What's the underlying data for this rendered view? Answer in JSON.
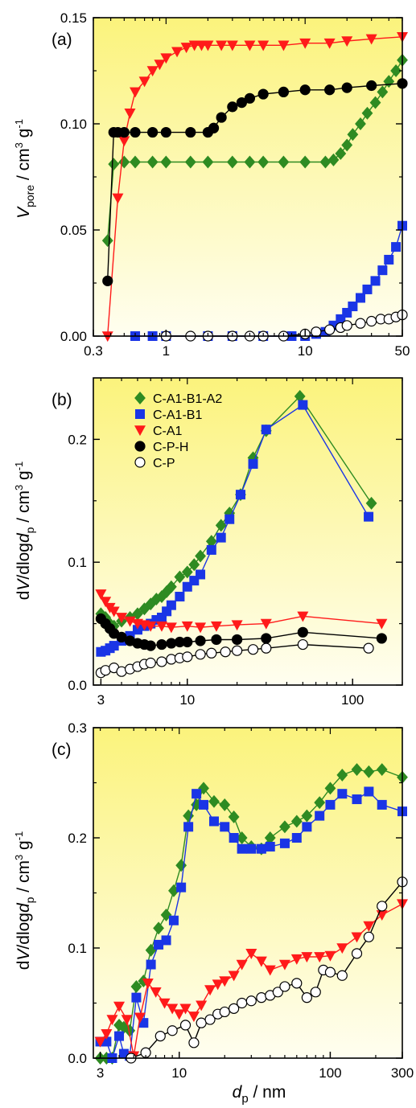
{
  "colors": {
    "green": "#2e8b22",
    "blue": "#1a35e6",
    "red": "#ff1a1a",
    "black": "#000000",
    "white": "#ffffff",
    "panel_top": "#fbf37c",
    "panel_bottom": "#fffef0"
  },
  "legend": {
    "entries": [
      {
        "name": "C-A1-B1-A2",
        "color": "#2e8b22",
        "marker": "diamond"
      },
      {
        "name": "C-A1-B1",
        "color": "#1a35e6",
        "marker": "square"
      },
      {
        "name": "C-A1",
        "color": "#ff1a1a",
        "marker": "triangle-down"
      },
      {
        "name": "C-P-H",
        "color": "#000000",
        "marker": "circle-filled"
      },
      {
        "name": "C-P",
        "color": "#ffffff",
        "marker": "circle-open"
      }
    ]
  },
  "chart_data": [
    {
      "panel_label": "(a)",
      "type": "scatter",
      "xscale": "log",
      "xlim": [
        0.3,
        50
      ],
      "ylim": [
        0,
        0.15
      ],
      "xticks": [
        0.3,
        1,
        10,
        50
      ],
      "xtick_labels": [
        "0.3",
        "1",
        "10",
        "50"
      ],
      "yticks": [
        0,
        0.05,
        0.1,
        0.15
      ],
      "ytick_labels": [
        "0.00",
        "0.05",
        "0.10",
        "0.15"
      ],
      "ylabel": "V_pore / cm^3 g^-1",
      "xlabel": "",
      "series": [
        {
          "name": "C-A1-B1-A2",
          "color": "#2e8b22",
          "marker": "diamond",
          "line": true,
          "x": [
            0.38,
            0.42,
            0.5,
            0.6,
            0.8,
            1,
            1.5,
            2,
            3,
            4,
            5,
            7,
            10,
            14,
            16,
            18,
            20,
            22,
            25,
            28,
            32,
            36,
            40,
            45,
            50
          ],
          "y": [
            0.045,
            0.081,
            0.082,
            0.082,
            0.082,
            0.082,
            0.082,
            0.082,
            0.082,
            0.082,
            0.082,
            0.082,
            0.082,
            0.082,
            0.083,
            0.086,
            0.09,
            0.095,
            0.1,
            0.105,
            0.11,
            0.115,
            0.12,
            0.125,
            0.13
          ]
        },
        {
          "name": "C-A1-B1",
          "color": "#1a35e6",
          "marker": "square",
          "line": true,
          "x": [
            0.6,
            0.8,
            1,
            2,
            3,
            5,
            8,
            10,
            12,
            14,
            16,
            18,
            20,
            22,
            25,
            28,
            32,
            36,
            40,
            45,
            50
          ],
          "y": [
            0,
            0,
            0,
            0,
            0,
            0,
            0,
            0,
            0.001,
            0.002,
            0.005,
            0.008,
            0.011,
            0.014,
            0.018,
            0.022,
            0.026,
            0.031,
            0.036,
            0.042,
            0.052
          ]
        },
        {
          "name": "C-A1",
          "color": "#ff1a1a",
          "marker": "triangle-down",
          "line": true,
          "x": [
            0.38,
            0.45,
            0.5,
            0.55,
            0.6,
            0.7,
            0.8,
            0.9,
            1,
            1.2,
            1.4,
            1.6,
            1.8,
            2,
            2.5,
            3,
            4,
            5,
            7,
            10,
            15,
            20,
            30,
            50
          ],
          "y": [
            0,
            0.065,
            0.092,
            0.105,
            0.115,
            0.12,
            0.125,
            0.128,
            0.131,
            0.134,
            0.136,
            0.137,
            0.137,
            0.137,
            0.137,
            0.137,
            0.137,
            0.137,
            0.137,
            0.138,
            0.138,
            0.139,
            0.14,
            0.141
          ]
        },
        {
          "name": "C-P-H",
          "color": "#000000",
          "marker": "circle-filled",
          "line": true,
          "x": [
            0.38,
            0.42,
            0.45,
            0.5,
            0.6,
            0.8,
            1,
            1.5,
            2,
            2.2,
            2.5,
            3,
            3.5,
            4,
            5,
            7,
            10,
            15,
            20,
            30,
            50
          ],
          "y": [
            0.026,
            0.096,
            0.096,
            0.096,
            0.096,
            0.096,
            0.096,
            0.096,
            0.096,
            0.098,
            0.103,
            0.108,
            0.11,
            0.112,
            0.114,
            0.115,
            0.116,
            0.116,
            0.117,
            0.118,
            0.119
          ]
        },
        {
          "name": "C-P",
          "color": "#ffffff",
          "marker": "circle-open",
          "line": true,
          "x": [
            1,
            1.5,
            2,
            3,
            4,
            5,
            7,
            10,
            12,
            15,
            18,
            20,
            25,
            30,
            35,
            40,
            45,
            50
          ],
          "y": [
            0,
            0,
            0,
            0,
            0,
            0,
            0,
            0.001,
            0.002,
            0.003,
            0.004,
            0.005,
            0.006,
            0.007,
            0.008,
            0.008,
            0.009,
            0.01
          ]
        }
      ]
    },
    {
      "panel_label": "(b)",
      "type": "scatter",
      "xscale": "log",
      "xlim": [
        2.7,
        200
      ],
      "ylim": [
        0,
        0.25
      ],
      "xticks": [
        3,
        10,
        100
      ],
      "xtick_labels": [
        "3",
        "10",
        "100"
      ],
      "yticks": [
        0,
        0.1,
        0.2
      ],
      "ytick_labels": [
        "0.0",
        "0.1",
        "0.2"
      ],
      "ylabel": "dV/dlogd_p / cm^3 g^-1",
      "xlabel": "",
      "series": [
        {
          "name": "C-A1-B1-A2",
          "color": "#2e8b22",
          "marker": "diamond",
          "line": true,
          "x": [
            3,
            3.2,
            3.4,
            3.6,
            4,
            4.5,
            5,
            5.5,
            6,
            6.5,
            7,
            7.5,
            8,
            9,
            10,
            11,
            12,
            14,
            16,
            18,
            21,
            25,
            30,
            48,
            130
          ],
          "y": [
            0.058,
            0.055,
            0.05,
            0.048,
            0.052,
            0.055,
            0.058,
            0.062,
            0.066,
            0.07,
            0.072,
            0.076,
            0.08,
            0.088,
            0.092,
            0.098,
            0.105,
            0.117,
            0.13,
            0.14,
            0.155,
            0.185,
            0.207,
            0.235,
            0.148
          ]
        },
        {
          "name": "C-A1-B1",
          "color": "#1a35e6",
          "marker": "square",
          "line": true,
          "x": [
            3,
            3.2,
            3.4,
            3.6,
            4,
            4.5,
            5,
            5.5,
            6,
            6.5,
            7,
            7.5,
            8,
            9,
            10,
            11,
            12,
            14,
            16,
            18,
            21,
            25,
            30,
            50,
            125
          ],
          "y": [
            0.027,
            0.028,
            0.03,
            0.032,
            0.036,
            0.04,
            0.045,
            0.048,
            0.05,
            0.053,
            0.055,
            0.06,
            0.065,
            0.072,
            0.08,
            0.085,
            0.09,
            0.11,
            0.12,
            0.135,
            0.155,
            0.18,
            0.208,
            0.228,
            0.137
          ]
        },
        {
          "name": "C-A1",
          "color": "#ff1a1a",
          "marker": "triangle-down",
          "line": true,
          "x": [
            3,
            3.2,
            3.4,
            3.6,
            4,
            4.5,
            5,
            5.5,
            6,
            7,
            8,
            10,
            12,
            15,
            20,
            30,
            50,
            150
          ],
          "y": [
            0.074,
            0.068,
            0.063,
            0.06,
            0.055,
            0.052,
            0.05,
            0.049,
            0.048,
            0.048,
            0.047,
            0.048,
            0.047,
            0.048,
            0.049,
            0.05,
            0.056,
            0.05
          ]
        },
        {
          "name": "C-P-H",
          "color": "#000000",
          "marker": "circle-filled",
          "line": true,
          "x": [
            3,
            3.2,
            3.4,
            3.6,
            4,
            4.5,
            5,
            5.5,
            6,
            7,
            8,
            9,
            10,
            12,
            15,
            20,
            30,
            50,
            150
          ],
          "y": [
            0.054,
            0.05,
            0.046,
            0.042,
            0.039,
            0.036,
            0.034,
            0.033,
            0.032,
            0.033,
            0.034,
            0.035,
            0.035,
            0.036,
            0.037,
            0.037,
            0.038,
            0.043,
            0.038
          ]
        },
        {
          "name": "C-P",
          "color": "#ffffff",
          "marker": "circle-open",
          "line": true,
          "x": [
            3,
            3.2,
            3.6,
            4,
            4.5,
            5,
            5.5,
            6,
            7,
            8,
            9,
            10,
            12,
            14,
            17,
            20,
            25,
            30,
            50,
            125
          ],
          "y": [
            0.01,
            0.012,
            0.014,
            0.011,
            0.013,
            0.015,
            0.017,
            0.018,
            0.019,
            0.021,
            0.022,
            0.023,
            0.025,
            0.026,
            0.027,
            0.028,
            0.029,
            0.03,
            0.033,
            0.03
          ]
        }
      ]
    },
    {
      "panel_label": "(c)",
      "type": "scatter",
      "xscale": "log",
      "xlim": [
        2.7,
        300
      ],
      "ylim": [
        0,
        0.3
      ],
      "xticks": [
        3,
        10,
        100,
        300
      ],
      "xtick_labels": [
        "3",
        "10",
        "100",
        "300"
      ],
      "yticks": [
        0,
        0.1,
        0.2,
        0.3
      ],
      "ytick_labels": [
        "0.0",
        "0.1",
        "0.2",
        "0.3"
      ],
      "ylabel": "dV/dlogd_p / cm^3 g^-1",
      "xlabel": "d_p / nm",
      "series": [
        {
          "name": "C-A1-B1-A2",
          "color": "#2e8b22",
          "marker": "diamond",
          "line": true,
          "x": [
            3,
            3.3,
            3.6,
            4,
            4.3,
            4.7,
            5.2,
            5.8,
            6.5,
            7.3,
            8.2,
            9.2,
            10.3,
            11.5,
            13,
            14.5,
            17,
            20,
            23,
            26,
            30,
            35,
            40,
            50,
            60,
            70,
            85,
            100,
            120,
            150,
            180,
            220,
            300
          ],
          "y": [
            0,
            0,
            0,
            0.03,
            0.028,
            0.025,
            0.065,
            0.07,
            0.098,
            0.118,
            0.13,
            0.152,
            0.175,
            0.22,
            0.23,
            0.245,
            0.233,
            0.23,
            0.219,
            0.2,
            0.192,
            0.19,
            0.2,
            0.21,
            0.215,
            0.22,
            0.232,
            0.245,
            0.257,
            0.262,
            0.26,
            0.262,
            0.255
          ]
        },
        {
          "name": "C-A1-B1",
          "color": "#1a35e6",
          "marker": "square",
          "line": true,
          "x": [
            3,
            3.3,
            3.6,
            4,
            4.3,
            4.7,
            5.2,
            5.8,
            6.5,
            7.3,
            8.2,
            9.2,
            10.3,
            11.5,
            13,
            14.5,
            17,
            20,
            23,
            26,
            30,
            35,
            40,
            50,
            60,
            70,
            85,
            100,
            120,
            150,
            180,
            220,
            300
          ],
          "y": [
            0.015,
            0.015,
            0,
            0.02,
            0.004,
            0.002,
            0.055,
            0.032,
            0.085,
            0.103,
            0.107,
            0.125,
            0.155,
            0.21,
            0.24,
            0.23,
            0.215,
            0.21,
            0.2,
            0.19,
            0.19,
            0.19,
            0.192,
            0.195,
            0.2,
            0.21,
            0.22,
            0.23,
            0.24,
            0.235,
            0.242,
            0.23,
            0.224
          ]
        },
        {
          "name": "C-A1",
          "color": "#ff1a1a",
          "marker": "triangle-down",
          "line": true,
          "x": [
            3,
            3.3,
            3.6,
            4,
            4.5,
            5,
            5.5,
            6.2,
            7,
            8,
            9,
            10,
            11,
            12.5,
            14,
            16,
            18,
            20,
            23,
            26,
            30,
            35,
            40,
            50,
            60,
            70,
            85,
            100,
            120,
            150,
            180,
            220,
            300
          ],
          "y": [
            0.015,
            0.022,
            0.035,
            0.047,
            0.035,
            0.002,
            0.037,
            0.068,
            0.06,
            0.05,
            0.045,
            0.04,
            0.045,
            0.038,
            0.048,
            0.062,
            0.067,
            0.07,
            0.075,
            0.085,
            0.095,
            0.088,
            0.08,
            0.085,
            0.09,
            0.092,
            0.092,
            0.093,
            0.1,
            0.11,
            0.12,
            0.13,
            0.14
          ]
        },
        {
          "name": "C-P-H",
          "color": "#000000",
          "marker": "circle-filled",
          "line": true,
          "x": [],
          "y": []
        },
        {
          "name": "C-P",
          "color": "#ffffff",
          "marker": "circle-open",
          "line": true,
          "x": [
            4.8,
            6,
            7.5,
            9,
            11,
            12.5,
            14,
            16,
            18,
            20,
            23,
            26,
            30,
            35,
            40,
            45,
            50,
            60,
            70,
            80,
            90,
            100,
            120,
            150,
            180,
            220,
            300
          ],
          "y": [
            0,
            0.005,
            0.02,
            0.025,
            0.03,
            0.014,
            0.032,
            0.035,
            0.04,
            0.042,
            0.045,
            0.05,
            0.052,
            0.055,
            0.057,
            0.06,
            0.065,
            0.068,
            0.055,
            0.06,
            0.08,
            0.078,
            0.075,
            0.095,
            0.11,
            0.138,
            0.16
          ]
        }
      ]
    }
  ]
}
